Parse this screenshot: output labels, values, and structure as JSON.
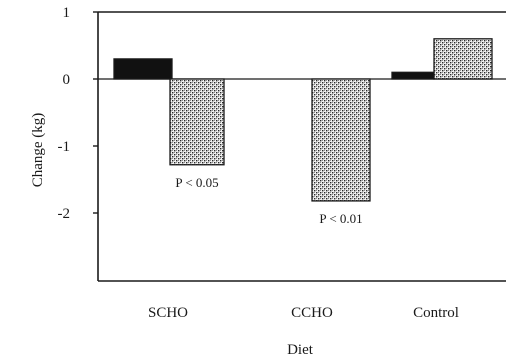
{
  "chart_data": {
    "type": "bar",
    "title": "",
    "xlabel": "Diet",
    "ylabel": "Change (kg)",
    "ylim": [
      -3,
      1
    ],
    "yticks": [
      1,
      0,
      -1,
      -2
    ],
    "categories": [
      "SCHO",
      "CCHO",
      "Control"
    ],
    "series": [
      {
        "values": [
          0.3,
          0.0,
          0.1
        ],
        "color": "#111111",
        "fill": "solid"
      },
      {
        "values": [
          -1.28,
          -1.82,
          0.6
        ],
        "color": "#555555",
        "fill": "stippled"
      }
    ],
    "annotations": [
      {
        "text": "P < 0.05",
        "category": "SCHO",
        "series": 1
      },
      {
        "text": "P < 0.01",
        "category": "CCHO",
        "series": 1
      }
    ],
    "grid": false,
    "legend": "none"
  }
}
